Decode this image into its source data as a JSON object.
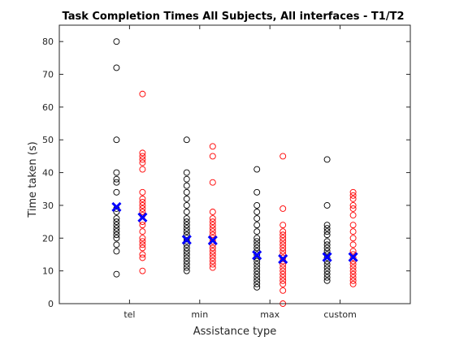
{
  "chart_data": {
    "type": "scatter",
    "title": "Task Completion Times All Subjects, All interfaces - T1/T2",
    "xlabel": "Assistance type",
    "ylabel": "Time taken (s)",
    "categories": [
      "tel",
      "min",
      "max",
      "custom"
    ],
    "ylim": [
      0,
      85
    ],
    "yticks": [
      0,
      10,
      20,
      30,
      40,
      50,
      60,
      70,
      80
    ],
    "grid": false,
    "colors": {
      "T1": "#000000",
      "T2": "#ff0000",
      "mean": "#0000ff"
    },
    "series": [
      {
        "values": [
          [
            80,
            72,
            50,
            40,
            38,
            37,
            34,
            29,
            28,
            26,
            25,
            24,
            23,
            22,
            21,
            20,
            18,
            16,
            9
          ],
          [
            50,
            40,
            38,
            36,
            34,
            32,
            30,
            28,
            26,
            25,
            24,
            23,
            22,
            21,
            20,
            19,
            18,
            17,
            16,
            15,
            14,
            13,
            12,
            11,
            10
          ],
          [
            41,
            34,
            30,
            28,
            26,
            24,
            22,
            20,
            19,
            18,
            17,
            16,
            15,
            14,
            13,
            12,
            11,
            10,
            9,
            8,
            7,
            6,
            5
          ],
          [
            44,
            30,
            24,
            23,
            22,
            21,
            19,
            18,
            17,
            16,
            15,
            14,
            13,
            12,
            11,
            10,
            9,
            8,
            7
          ]
        ],
        "means": [
          29.5,
          19.5,
          14.8,
          14.2
        ]
      },
      {
        "values": [
          [
            64,
            46,
            45,
            44,
            43,
            41,
            34,
            32,
            31,
            30,
            29,
            28,
            27,
            25,
            24,
            22,
            20,
            19,
            18,
            17,
            15,
            14,
            10
          ],
          [
            48,
            45,
            37,
            28,
            26,
            25,
            24,
            23,
            22,
            21,
            20,
            19,
            18,
            17,
            16,
            15,
            14,
            13,
            12,
            11
          ],
          [
            45,
            29,
            24,
            22,
            21,
            20,
            19,
            18,
            17,
            16,
            15,
            14,
            13,
            12,
            11,
            10,
            9,
            8,
            7,
            6,
            4,
            0
          ],
          [
            34,
            33,
            32,
            30,
            29,
            27,
            24,
            22,
            20,
            18,
            16,
            15,
            14,
            13,
            12,
            11,
            10,
            9,
            8,
            7,
            6
          ]
        ],
        "means": [
          26.3,
          19.3,
          13.6,
          14.2
        ]
      }
    ]
  }
}
